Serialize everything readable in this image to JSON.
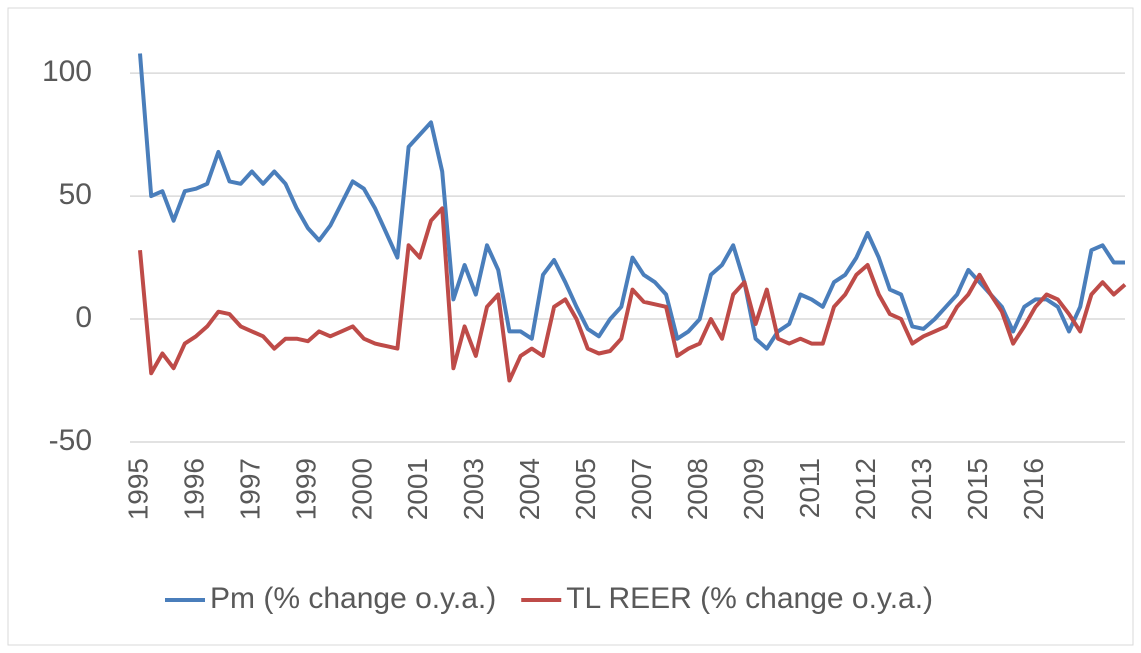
{
  "chart_data": {
    "type": "line",
    "categories": [
      "1995",
      null,
      null,
      null,
      null,
      "1996",
      null,
      null,
      null,
      null,
      "1997",
      null,
      null,
      null,
      null,
      "1999",
      null,
      null,
      null,
      null,
      "2000",
      null,
      null,
      null,
      null,
      "2001",
      null,
      null,
      null,
      null,
      "2003",
      null,
      null,
      null,
      null,
      "2004",
      null,
      null,
      null,
      null,
      "2005",
      null,
      null,
      null,
      null,
      "2007",
      null,
      null,
      null,
      null,
      "2008",
      null,
      null,
      null,
      null,
      "2009",
      null,
      null,
      null,
      null,
      "2011",
      null,
      null,
      null,
      null,
      "2012",
      null,
      null,
      null,
      null,
      "2013",
      null,
      null,
      null,
      null,
      "2015",
      null,
      null,
      null,
      null,
      "2016",
      null,
      null,
      null,
      null,
      null,
      null,
      null,
      null
    ],
    "series": [
      {
        "name": "Pm (% change o.y.a.)",
        "color": "#4a7ebb",
        "values": [
          108,
          50,
          52,
          40,
          52,
          53,
          55,
          68,
          56,
          55,
          60,
          55,
          60,
          55,
          45,
          37,
          32,
          38,
          47,
          56,
          53,
          45,
          35,
          25,
          70,
          75,
          80,
          60,
          8,
          22,
          10,
          30,
          20,
          -5,
          -5,
          -8,
          18,
          24,
          15,
          5,
          -4,
          -7,
          0,
          5,
          25,
          18,
          15,
          10,
          -8,
          -5,
          0,
          18,
          22,
          30,
          15,
          -8,
          -12,
          -5,
          -2,
          10,
          8,
          5,
          15,
          18,
          25,
          35,
          25,
          12,
          10,
          -3,
          -4,
          0,
          5,
          10,
          20,
          15,
          10,
          5,
          -5,
          5,
          8,
          8,
          5,
          -5,
          5,
          28,
          30,
          23,
          23
        ]
      },
      {
        "name": "TL REER (% change o.y.a.)",
        "color": "#be4b48",
        "values": [
          28,
          -22,
          -14,
          -20,
          -10,
          -7,
          -3,
          3,
          2,
          -3,
          -5,
          -7,
          -12,
          -8,
          -8,
          -9,
          -5,
          -7,
          -5,
          -3,
          -8,
          -10,
          -11,
          -12,
          30,
          25,
          40,
          45,
          -20,
          -3,
          -15,
          5,
          10,
          -25,
          -15,
          -12,
          -15,
          5,
          8,
          0,
          -12,
          -14,
          -13,
          -8,
          12,
          7,
          6,
          5,
          -15,
          -12,
          -10,
          0,
          -8,
          10,
          15,
          -2,
          12,
          -8,
          -10,
          -8,
          -10,
          -10,
          5,
          10,
          18,
          22,
          10,
          2,
          0,
          -10,
          -7,
          -5,
          -3,
          5,
          10,
          18,
          10,
          3,
          -10,
          -3,
          5,
          10,
          8,
          2,
          -5,
          10,
          15,
          10,
          14
        ]
      }
    ],
    "ylim": [
      -50,
      120
    ],
    "yticks": [
      -50,
      0,
      50,
      100
    ],
    "grid": true,
    "legend": "bottom"
  }
}
